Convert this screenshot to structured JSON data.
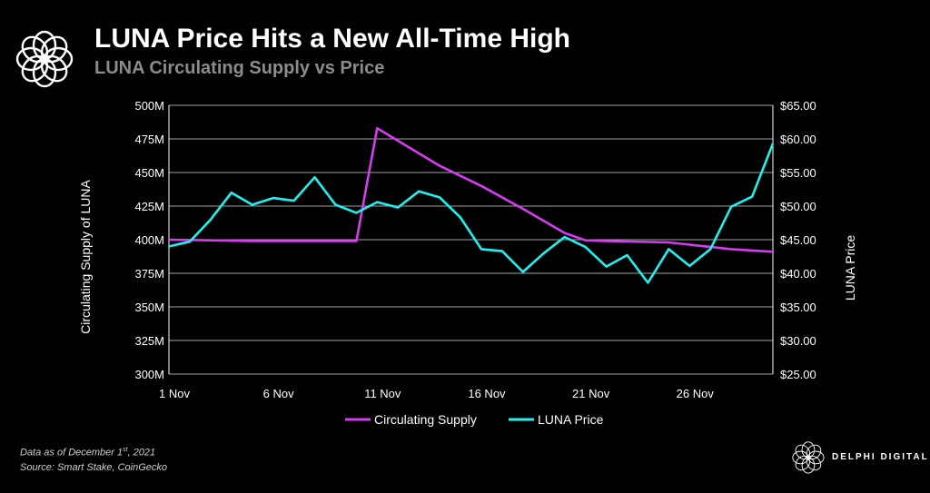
{
  "header": {
    "title": "LUNA Price Hits a New All-Time High",
    "subtitle": "LUNA Circulating Supply vs Price"
  },
  "footnote": {
    "line1_prefix": "Data as of December 1",
    "line1_sup": "st",
    "line1_suffix": ", 2021",
    "line2": "Source: Smart Stake, CoinGecko"
  },
  "brand": {
    "name": "DELPHI DIGITAL",
    "logo_icon": "delphi-flower-icon"
  },
  "colors": {
    "supply": "#d63cf0",
    "price": "#22f0f0",
    "grid": "#ffffff",
    "axis": "#ffffff"
  },
  "chart_data": {
    "type": "line",
    "grid": true,
    "legend_position": "bottom",
    "x": [
      1,
      2,
      3,
      4,
      5,
      6,
      7,
      8,
      9,
      10,
      11,
      12,
      13,
      14,
      15,
      16,
      17,
      18,
      19,
      20,
      21,
      22,
      23,
      24,
      25,
      26,
      27,
      28,
      29,
      30
    ],
    "x_ticks": [
      1,
      6,
      11,
      16,
      21,
      26
    ],
    "x_tick_labels": [
      "1 Nov",
      "6 Nov",
      "11 Nov",
      "16 Nov",
      "21 Nov",
      "26 Nov"
    ],
    "xlim": [
      1,
      30
    ],
    "ylabel_left": "Circulating Supply of LUNA",
    "ylabel_right": "LUNA Price",
    "ylim_left": [
      300,
      500
    ],
    "y_ticks_left": [
      "300M",
      "325M",
      "350M",
      "375M",
      "400M",
      "425M",
      "450M",
      "475M",
      "500M"
    ],
    "ylim_right": [
      25,
      65
    ],
    "y_ticks_right": [
      "$25.00",
      "$30.00",
      "$35.00",
      "$40.00",
      "$45.00",
      "$50.00",
      "$55.00",
      "$60.00",
      "$65.00"
    ],
    "series": [
      {
        "name": "Circulating Supply",
        "axis": "left",
        "unit": "M",
        "x": [
          1,
          3,
          5,
          7,
          9,
          10,
          11,
          14,
          16,
          18,
          20,
          21,
          22,
          25,
          28,
          30
        ],
        "values": [
          400,
          399.5,
          399,
          399,
          399,
          399,
          483,
          455,
          440,
          423,
          405,
          399.5,
          399,
          398,
          393,
          391
        ]
      },
      {
        "name": "LUNA Price",
        "axis": "right",
        "unit": "$",
        "x": [
          1,
          2,
          3,
          4,
          5,
          6,
          7,
          8,
          9,
          10,
          11,
          12,
          13,
          14,
          15,
          16,
          17,
          18,
          19,
          20,
          21,
          22,
          23,
          24,
          25,
          26,
          27,
          28,
          29,
          30
        ],
        "values": [
          44.0,
          44.7,
          48.0,
          52.0,
          50.2,
          51.2,
          50.8,
          54.3,
          50.2,
          49.0,
          50.6,
          49.8,
          52.2,
          51.3,
          48.3,
          43.6,
          43.3,
          40.2,
          43.0,
          45.4,
          43.9,
          41.0,
          42.7,
          38.6,
          43.6,
          41.1,
          43.6,
          49.9,
          51.4,
          59.3
        ]
      }
    ]
  }
}
